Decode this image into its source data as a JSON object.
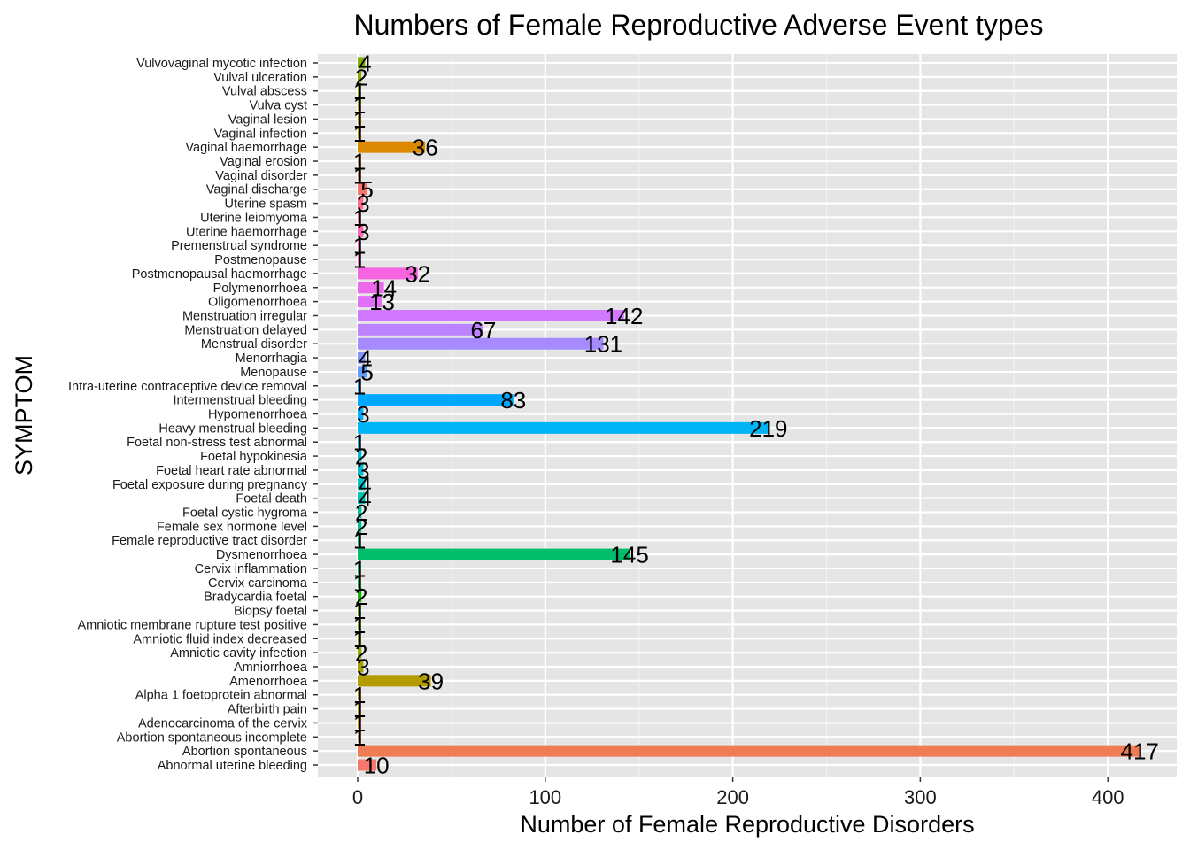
{
  "chart_data": {
    "type": "bar",
    "orientation": "horizontal",
    "title": "Numbers of Female Reproductive Adverse Event types",
    "xlabel": "Number of Female Reproductive Disorders",
    "ylabel": "SYMPTOM",
    "xlim": [
      -20,
      435
    ],
    "xticks": [
      0,
      100,
      200,
      300,
      400
    ],
    "grid": true,
    "legend": "none",
    "background": "#e5e5e5",
    "categories": [
      "Abnormal uterine bleeding",
      "Abortion spontaneous",
      "Abortion spontaneous incomplete",
      "Adenocarcinoma of the cervix",
      "Afterbirth pain",
      "Alpha 1 foetoprotein abnormal",
      "Amenorrhoea",
      "Amniorrhoea",
      "Amniotic cavity infection",
      "Amniotic fluid index decreased",
      "Amniotic membrane rupture test positive",
      "Biopsy foetal",
      "Bradycardia foetal",
      "Cervix carcinoma",
      "Cervix inflammation",
      "Dysmenorrhoea",
      "Female reproductive tract disorder",
      "Female sex hormone level",
      "Foetal cystic hygroma",
      "Foetal death",
      "Foetal exposure during pregnancy",
      "Foetal heart rate abnormal",
      "Foetal hypokinesia",
      "Foetal non-stress test abnormal",
      "Heavy menstrual bleeding",
      "Hypomenorrhoea",
      "Intermenstrual bleeding",
      "Intra-uterine contraceptive device removal",
      "Menopause",
      "Menorrhagia",
      "Menstrual disorder",
      "Menstruation delayed",
      "Menstruation irregular",
      "Oligomenorrhoea",
      "Polymenorrhoea",
      "Postmenopausal haemorrhage",
      "Postmenopause",
      "Premenstrual syndrome",
      "Uterine haemorrhage",
      "Uterine leiomyoma",
      "Uterine spasm",
      "Vaginal discharge",
      "Vaginal disorder",
      "Vaginal erosion",
      "Vaginal haemorrhage",
      "Vaginal infection",
      "Vaginal lesion",
      "Vulva cyst",
      "Vulval abscess",
      "Vulval ulceration",
      "Vulvovaginal mycotic infection"
    ],
    "values": [
      10,
      417,
      1,
      1,
      1,
      1,
      39,
      3,
      2,
      1,
      1,
      1,
      2,
      1,
      1,
      145,
      1,
      2,
      2,
      4,
      4,
      3,
      2,
      1,
      219,
      3,
      83,
      1,
      5,
      4,
      131,
      67,
      142,
      13,
      14,
      32,
      1,
      1,
      3,
      1,
      3,
      5,
      1,
      1,
      36,
      1,
      1,
      1,
      1,
      2,
      4
    ],
    "colors": [
      "#F8766D",
      "#F07C56",
      "#E6833B",
      "#DA8900",
      "#CE8F00",
      "#C19600",
      "#B39C00",
      "#A3A200",
      "#92A800",
      "#7FAD00",
      "#68B100",
      "#4BB500",
      "#0EB800",
      "#00BB37",
      "#00BD54",
      "#00BE6B",
      "#00C07F",
      "#00C191",
      "#00C1A3",
      "#00C1B3",
      "#00C0C3",
      "#00BED2",
      "#00BBDF",
      "#00B8EB",
      "#00B4F5",
      "#00AFFE",
      "#00A9FF",
      "#00A2FF",
      "#619CFF",
      "#8893FF",
      "#A68AFF",
      "#BD82FF",
      "#D078FF",
      "#E16FF8",
      "#ED68ED",
      "#F664E0",
      "#FD61D1",
      "#FF61C2",
      "#FF63B1",
      "#FF679E",
      "#FC6C8A",
      "#F8766D",
      "#F07C56",
      "#E6833B",
      "#DA8900",
      "#CE8F00",
      "#C19600",
      "#B39C00",
      "#A3A200",
      "#92A800",
      "#7FAD00"
    ]
  }
}
